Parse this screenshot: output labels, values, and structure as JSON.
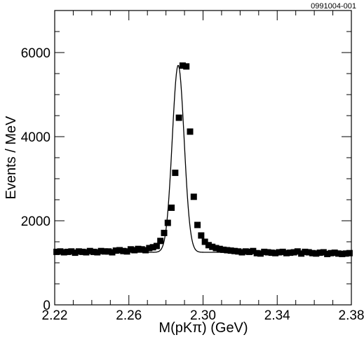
{
  "figure_code": "0991004-001",
  "chart_data": {
    "type": "scatter",
    "title": "",
    "xlabel": "M(pKπ) (GeV)",
    "ylabel": "Events / MeV",
    "xlim": [
      2.22,
      2.38
    ],
    "ylim": [
      0,
      7000
    ],
    "x_ticks": [
      "2.22",
      "2.26",
      "2.30",
      "2.34",
      "2.38"
    ],
    "y_ticks": [
      "0",
      "2000",
      "4000",
      "6000"
    ],
    "x_tick_values": [
      2.22,
      2.26,
      2.3,
      2.34,
      2.38
    ],
    "y_tick_values": [
      0,
      2000,
      4000,
      6000
    ],
    "x_minor_step": 0.01,
    "y_minor_step": 500,
    "grid": false,
    "legend": "none",
    "marker": "filled-square",
    "color": "#000000",
    "series": [
      {
        "x": [
          2.221,
          2.223,
          2.225,
          2.227,
          2.229,
          2.231,
          2.233,
          2.235,
          2.237,
          2.239,
          2.241,
          2.243,
          2.245,
          2.247,
          2.249,
          2.251,
          2.253,
          2.255,
          2.257,
          2.259,
          2.261,
          2.263,
          2.265,
          2.267,
          2.269,
          2.271,
          2.273,
          2.275,
          2.277,
          2.279,
          2.281,
          2.283,
          2.285,
          2.287,
          2.289,
          2.291,
          2.293,
          2.295,
          2.297,
          2.299,
          2.301,
          2.303,
          2.305,
          2.307,
          2.309,
          2.311,
          2.313,
          2.315,
          2.317,
          2.319,
          2.321,
          2.323,
          2.325,
          2.327,
          2.329,
          2.331,
          2.333,
          2.335,
          2.337,
          2.339,
          2.341,
          2.343,
          2.345,
          2.347,
          2.349,
          2.351,
          2.353,
          2.355,
          2.357,
          2.359,
          2.361,
          2.363,
          2.365,
          2.367,
          2.369,
          2.371,
          2.373,
          2.375,
          2.377,
          2.379
        ],
        "y": [
          1260,
          1270,
          1250,
          1260,
          1270,
          1240,
          1270,
          1260,
          1250,
          1280,
          1260,
          1250,
          1280,
          1270,
          1270,
          1250,
          1290,
          1300,
          1280,
          1270,
          1320,
          1300,
          1330,
          1320,
          1300,
          1350,
          1370,
          1400,
          1520,
          1710,
          1950,
          2310,
          3140,
          4450,
          5690,
          5670,
          4120,
          2570,
          1900,
          1650,
          1500,
          1420,
          1380,
          1350,
          1330,
          1310,
          1300,
          1290,
          1280,
          1270,
          1250,
          1270,
          1260,
          1280,
          1230,
          1220,
          1260,
          1250,
          1240,
          1230,
          1250,
          1260,
          1230,
          1240,
          1250,
          1270,
          1220,
          1260,
          1250,
          1230,
          1220,
          1240,
          1250,
          1210,
          1230,
          1240,
          1220,
          1210,
          1220,
          1230
        ]
      }
    ],
    "fit_curve": {
      "name": "",
      "background_level": 1250,
      "peak_mass": 2.2866,
      "peak_height": 5700,
      "sigma": 0.0032
    }
  }
}
